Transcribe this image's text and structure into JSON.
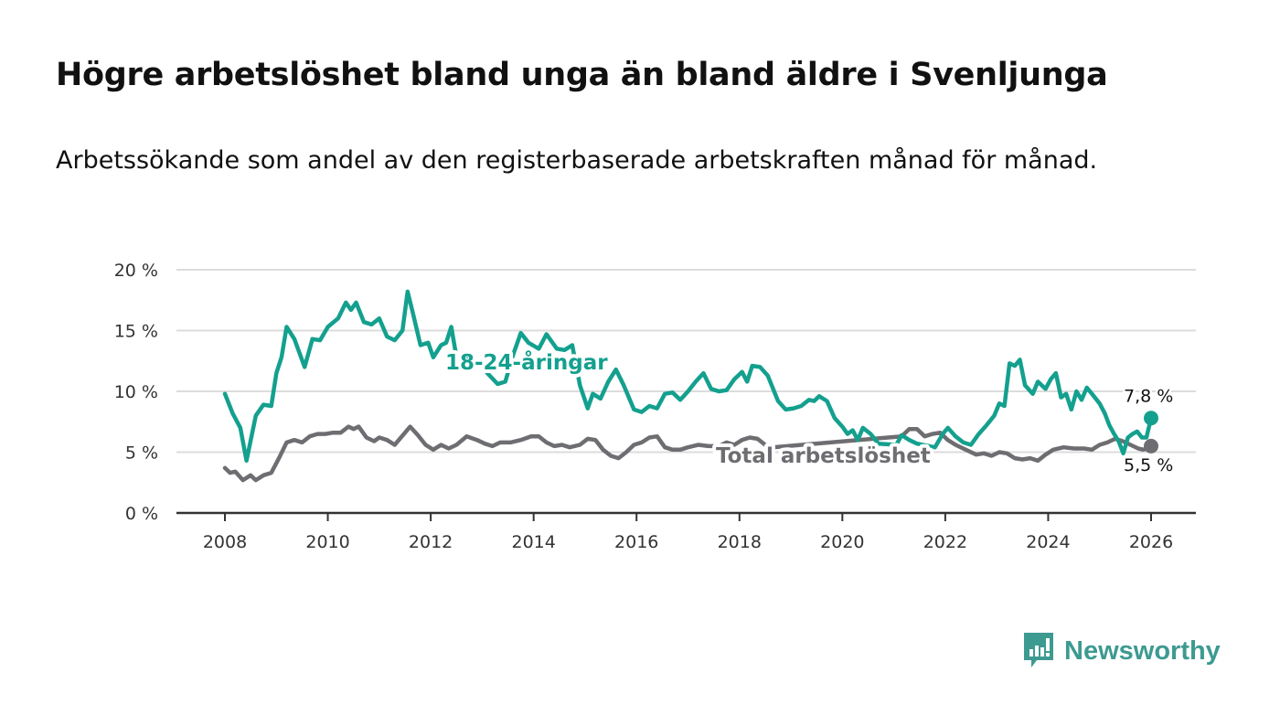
{
  "header": {
    "title": "Högre arbetslöshet bland unga än bland äldre i Svenljunga",
    "subtitle": "Arbetssökande som andel av den registerbaserade arbetskraften månad för månad."
  },
  "branding": {
    "logo_text": "Newsworthy",
    "color": "#3d9a91"
  },
  "chart_data": {
    "type": "line",
    "title": "Högre arbetslöshet bland unga än bland äldre i Svenljunga",
    "subtitle": "Arbetssökande som andel av den registerbaserade arbetskraften månad för månad.",
    "xlabel": "",
    "ylabel": "",
    "x_unit": "year (decimal, monthly data)",
    "xlim": [
      2007.1,
      2027.0
    ],
    "ylim": [
      0,
      20
    ],
    "grid": true,
    "x_ticks": [
      2008,
      2010,
      2012,
      2014,
      2016,
      2018,
      2020,
      2022,
      2024,
      2026
    ],
    "x_tick_labels": [
      "2008",
      "2010",
      "2012",
      "2014",
      "2016",
      "2018",
      "2020",
      "2022",
      "2024",
      "2026"
    ],
    "y_ticks": [
      0,
      5,
      10,
      15,
      20
    ],
    "y_tick_labels": [
      "0 %",
      "5 %",
      "10 %",
      "15 %",
      "20 %"
    ],
    "series": [
      {
        "name": "18-24-åringar",
        "color": "#14a08e",
        "label_value": "7,8 %",
        "points": [
          [
            2008.0,
            9.8
          ],
          [
            2008.15,
            8.2
          ],
          [
            2008.3,
            7.0
          ],
          [
            2008.42,
            4.3
          ],
          [
            2008.6,
            8.0
          ],
          [
            2008.75,
            8.9
          ],
          [
            2008.9,
            8.8
          ],
          [
            2009.0,
            11.5
          ],
          [
            2009.1,
            12.8
          ],
          [
            2009.2,
            15.3
          ],
          [
            2009.35,
            14.3
          ],
          [
            2009.55,
            12.0
          ],
          [
            2009.7,
            14.3
          ],
          [
            2009.85,
            14.2
          ],
          [
            2010.0,
            15.3
          ],
          [
            2010.2,
            16.0
          ],
          [
            2010.35,
            17.3
          ],
          [
            2010.45,
            16.7
          ],
          [
            2010.55,
            17.3
          ],
          [
            2010.7,
            15.7
          ],
          [
            2010.85,
            15.5
          ],
          [
            2011.0,
            16.0
          ],
          [
            2011.15,
            14.5
          ],
          [
            2011.3,
            14.2
          ],
          [
            2011.45,
            15.0
          ],
          [
            2011.55,
            18.2
          ],
          [
            2011.65,
            16.5
          ],
          [
            2011.8,
            13.8
          ],
          [
            2011.95,
            14.0
          ],
          [
            2012.05,
            12.8
          ],
          [
            2012.2,
            13.8
          ],
          [
            2012.3,
            14.0
          ],
          [
            2012.4,
            15.3
          ],
          [
            2012.5,
            12.8
          ],
          [
            2012.65,
            13.0
          ],
          [
            2012.8,
            12.3
          ],
          [
            2012.95,
            12.5
          ],
          [
            2013.1,
            11.5
          ],
          [
            2013.3,
            10.6
          ],
          [
            2013.45,
            10.8
          ],
          [
            2013.6,
            13.0
          ],
          [
            2013.75,
            14.8
          ],
          [
            2013.9,
            14.0
          ],
          [
            2014.1,
            13.5
          ],
          [
            2014.25,
            14.7
          ],
          [
            2014.45,
            13.5
          ],
          [
            2014.6,
            13.4
          ],
          [
            2014.75,
            13.8
          ],
          [
            2014.9,
            10.5
          ],
          [
            2015.05,
            8.6
          ],
          [
            2015.15,
            9.8
          ],
          [
            2015.3,
            9.4
          ],
          [
            2015.45,
            10.8
          ],
          [
            2015.6,
            11.8
          ],
          [
            2015.75,
            10.5
          ],
          [
            2015.95,
            8.5
          ],
          [
            2016.1,
            8.3
          ],
          [
            2016.25,
            8.8
          ],
          [
            2016.4,
            8.6
          ],
          [
            2016.55,
            9.8
          ],
          [
            2016.7,
            9.9
          ],
          [
            2016.85,
            9.3
          ],
          [
            2017.0,
            10.0
          ],
          [
            2017.15,
            10.8
          ],
          [
            2017.3,
            11.5
          ],
          [
            2017.45,
            10.2
          ],
          [
            2017.6,
            10.0
          ],
          [
            2017.75,
            10.1
          ],
          [
            2017.9,
            11.0
          ],
          [
            2018.05,
            11.6
          ],
          [
            2018.15,
            10.8
          ],
          [
            2018.25,
            12.1
          ],
          [
            2018.4,
            12.0
          ],
          [
            2018.55,
            11.3
          ],
          [
            2018.75,
            9.2
          ],
          [
            2018.9,
            8.5
          ],
          [
            2019.05,
            8.6
          ],
          [
            2019.2,
            8.8
          ],
          [
            2019.35,
            9.3
          ],
          [
            2019.45,
            9.2
          ],
          [
            2019.55,
            9.6
          ],
          [
            2019.7,
            9.2
          ],
          [
            2019.85,
            7.8
          ],
          [
            2020.0,
            7.1
          ],
          [
            2020.1,
            6.5
          ],
          [
            2020.2,
            6.8
          ],
          [
            2020.3,
            6.0
          ],
          [
            2020.4,
            7.0
          ],
          [
            2020.55,
            6.5
          ],
          [
            2020.7,
            5.7
          ],
          [
            2021.05,
            5.6
          ],
          [
            2021.15,
            6.4
          ],
          [
            2021.3,
            6.0
          ],
          [
            2021.45,
            5.7
          ],
          [
            2021.8,
            5.4
          ],
          [
            2021.95,
            6.5
          ],
          [
            2022.05,
            7.0
          ],
          [
            2022.2,
            6.3
          ],
          [
            2022.35,
            5.8
          ],
          [
            2022.5,
            5.6
          ],
          [
            2022.65,
            6.5
          ],
          [
            2022.8,
            7.2
          ],
          [
            2022.95,
            8.0
          ],
          [
            2023.05,
            9.0
          ],
          [
            2023.15,
            8.8
          ],
          [
            2023.25,
            12.3
          ],
          [
            2023.35,
            12.1
          ],
          [
            2023.45,
            12.6
          ],
          [
            2023.55,
            10.5
          ],
          [
            2023.7,
            9.8
          ],
          [
            2023.8,
            10.8
          ],
          [
            2023.95,
            10.2
          ],
          [
            2024.05,
            11.0
          ],
          [
            2024.15,
            11.5
          ],
          [
            2024.25,
            9.5
          ],
          [
            2024.35,
            9.8
          ],
          [
            2024.45,
            8.5
          ],
          [
            2024.55,
            10.0
          ],
          [
            2024.65,
            9.3
          ],
          [
            2024.75,
            10.3
          ],
          [
            2024.85,
            9.8
          ],
          [
            2025.0,
            9.0
          ],
          [
            2025.1,
            8.2
          ]
        ]
      },
      {
        "name": "Total arbetslöshet",
        "color": "#6e6d71",
        "label_value": "5,5 %",
        "points": [
          [
            2008.0,
            3.7
          ],
          [
            2008.1,
            3.3
          ],
          [
            2008.2,
            3.4
          ],
          [
            2008.35,
            2.7
          ],
          [
            2008.5,
            3.1
          ],
          [
            2008.6,
            2.7
          ],
          [
            2008.75,
            3.1
          ],
          [
            2008.9,
            3.3
          ],
          [
            2009.05,
            4.5
          ],
          [
            2009.2,
            5.8
          ],
          [
            2009.35,
            6.0
          ],
          [
            2009.5,
            5.8
          ],
          [
            2009.65,
            6.3
          ],
          [
            2009.8,
            6.5
          ],
          [
            2009.95,
            6.5
          ],
          [
            2010.1,
            6.6
          ],
          [
            2010.25,
            6.6
          ],
          [
            2010.4,
            7.1
          ],
          [
            2010.5,
            6.9
          ],
          [
            2010.6,
            7.1
          ],
          [
            2010.75,
            6.2
          ],
          [
            2010.9,
            5.9
          ],
          [
            2011.0,
            6.2
          ],
          [
            2011.15,
            6.0
          ],
          [
            2011.3,
            5.6
          ],
          [
            2011.5,
            6.6
          ],
          [
            2011.6,
            7.1
          ],
          [
            2011.75,
            6.4
          ],
          [
            2011.9,
            5.6
          ],
          [
            2012.05,
            5.2
          ],
          [
            2012.2,
            5.6
          ],
          [
            2012.35,
            5.3
          ],
          [
            2012.5,
            5.6
          ],
          [
            2012.7,
            6.3
          ],
          [
            2012.9,
            6.0
          ],
          [
            2013.05,
            5.7
          ],
          [
            2013.2,
            5.5
          ],
          [
            2013.35,
            5.8
          ],
          [
            2013.55,
            5.8
          ],
          [
            2013.75,
            6.0
          ],
          [
            2013.95,
            6.3
          ],
          [
            2014.1,
            6.3
          ],
          [
            2014.25,
            5.8
          ],
          [
            2014.4,
            5.5
          ],
          [
            2014.55,
            5.6
          ],
          [
            2014.7,
            5.4
          ],
          [
            2014.9,
            5.6
          ],
          [
            2015.05,
            6.1
          ],
          [
            2015.2,
            6.0
          ],
          [
            2015.35,
            5.2
          ],
          [
            2015.5,
            4.7
          ],
          [
            2015.65,
            4.5
          ],
          [
            2015.8,
            5.0
          ],
          [
            2015.95,
            5.6
          ],
          [
            2016.1,
            5.8
          ],
          [
            2016.25,
            6.2
          ],
          [
            2016.4,
            6.3
          ],
          [
            2016.55,
            5.4
          ],
          [
            2016.7,
            5.2
          ],
          [
            2016.85,
            5.2
          ],
          [
            2017.0,
            5.4
          ],
          [
            2017.2,
            5.6
          ],
          [
            2017.4,
            5.5
          ],
          [
            2017.6,
            5.5
          ],
          [
            2017.75,
            5.8
          ],
          [
            2017.9,
            5.6
          ],
          [
            2018.05,
            6.0
          ],
          [
            2018.2,
            6.2
          ],
          [
            2018.35,
            6.1
          ],
          [
            2018.5,
            5.6
          ],
          [
            2018.65,
            5.4
          ],
          [
            2021.15,
            6.3
          ],
          [
            2021.3,
            6.9
          ],
          [
            2021.45,
            6.9
          ],
          [
            2021.6,
            6.3
          ],
          [
            2021.75,
            6.5
          ],
          [
            2021.9,
            6.6
          ],
          [
            2022.05,
            6.0
          ],
          [
            2022.2,
            5.6
          ],
          [
            2022.6,
            4.8
          ],
          [
            2022.75,
            4.9
          ],
          [
            2022.9,
            4.7
          ],
          [
            2023.05,
            5.0
          ],
          [
            2023.2,
            4.9
          ],
          [
            2023.35,
            4.5
          ],
          [
            2023.5,
            4.4
          ],
          [
            2023.65,
            4.5
          ],
          [
            2023.8,
            4.3
          ],
          [
            2023.95,
            4.8
          ],
          [
            2024.1,
            5.2
          ],
          [
            2024.3,
            5.4
          ],
          [
            2024.5,
            5.3
          ],
          [
            2024.7,
            5.3
          ],
          [
            2024.85,
            5.2
          ],
          [
            2025.0,
            5.6
          ],
          [
            2025.15,
            5.8
          ],
          [
            2025.3,
            6.1
          ],
          [
            2025.45,
            5.9
          ],
          [
            2025.6,
            5.6
          ],
          [
            2025.75,
            5.3
          ],
          [
            2025.85,
            5.2
          ],
          [
            2026.0,
            5.5
          ]
        ]
      }
    ],
    "annotations": [
      {
        "text": "18-24-åringar",
        "series": "18-24-åringar",
        "anchor": [
          2012.5,
          12.4
        ]
      },
      {
        "text": "Total arbetslöshet",
        "series": "Total arbetslöshet",
        "anchor": [
          2017.6,
          4.9
        ]
      },
      {
        "text": "7,8 %",
        "series": "18-24-åringar",
        "anchor": [
          2026.0,
          7.8
        ]
      },
      {
        "text": "5,5 %",
        "series": "Total arbetslöshet",
        "anchor": [
          2026.0,
          5.5
        ]
      }
    ]
  }
}
